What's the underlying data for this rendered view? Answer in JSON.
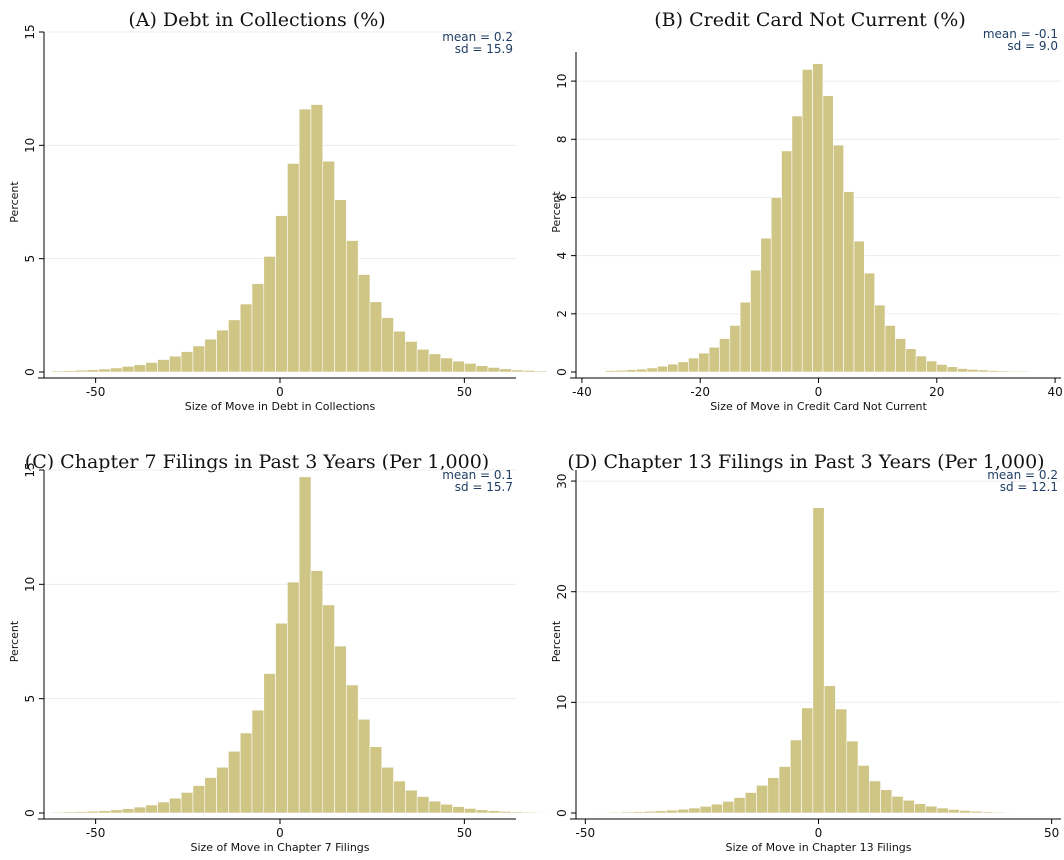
{
  "colors": {
    "bar": "#cfc585",
    "stat_text": "#1f3e63",
    "grid": "#ececec"
  },
  "chart_data": [
    {
      "type": "bar",
      "title": "(A)  Debt in Collections (%)",
      "xlabel": "Size of Move in Debt in Collections",
      "ylabel": "Percent",
      "xlim": [
        -64,
        64
      ],
      "ylim": [
        0,
        15
      ],
      "xticks": [
        -50,
        0,
        50
      ],
      "yticks": [
        0,
        5,
        10,
        15
      ],
      "grid": true,
      "stats": {
        "mean": "mean = 0.2",
        "sd": "sd = 15.9"
      },
      "bin_width": 3.2,
      "bin_start": -62,
      "values": [
        0.05,
        0.06,
        0.08,
        0.1,
        0.13,
        0.18,
        0.25,
        0.32,
        0.42,
        0.55,
        0.7,
        0.9,
        1.15,
        1.45,
        1.85,
        2.3,
        3.0,
        3.9,
        5.1,
        6.9,
        9.2,
        11.6,
        11.8,
        9.3,
        7.6,
        5.8,
        4.3,
        3.1,
        2.4,
        1.8,
        1.35,
        1.0,
        0.8,
        0.62,
        0.48,
        0.38,
        0.28,
        0.2,
        0.14,
        0.09,
        0.07,
        0.05
      ]
    },
    {
      "type": "bar",
      "title": "(B)  Credit Card Not Current (%)",
      "xlabel": "Size of Move in Credit Card Not Current",
      "ylabel": "Percent",
      "xlim": [
        -41,
        41
      ],
      "ylim": [
        0,
        11
      ],
      "xticks": [
        -40,
        -20,
        0,
        20,
        40
      ],
      "yticks": [
        0,
        2,
        4,
        6,
        8,
        10
      ],
      "grid": true,
      "stats": {
        "mean": "mean = -0.1",
        "sd": "sd = 9.0"
      },
      "bin_width": 1.75,
      "bin_start": -36,
      "values": [
        0.05,
        0.06,
        0.08,
        0.1,
        0.14,
        0.2,
        0.27,
        0.35,
        0.48,
        0.65,
        0.85,
        1.15,
        1.6,
        2.4,
        3.5,
        4.6,
        6.0,
        7.6,
        8.8,
        10.4,
        10.6,
        9.5,
        7.8,
        6.2,
        4.5,
        3.4,
        2.3,
        1.6,
        1.15,
        0.8,
        0.55,
        0.38,
        0.26,
        0.18,
        0.12,
        0.09,
        0.07,
        0.05,
        0.04,
        0.03,
        0.03
      ]
    },
    {
      "type": "bar",
      "title": "(C)  Chapter 7 Filings in Past 3 Years (Per 1,000)",
      "xlabel": "Size of Move in Chapter 7 Filings",
      "ylabel": "Percent",
      "xlim": [
        -64,
        64
      ],
      "ylim": [
        0,
        15
      ],
      "xticks": [
        -50,
        0,
        50
      ],
      "yticks": [
        0,
        5,
        10,
        15
      ],
      "grid": true,
      "stats": {
        "mean": "mean = 0.1",
        "sd": "sd = 15.7"
      },
      "bin_width": 3.2,
      "bin_start": -62,
      "values": [
        0.04,
        0.05,
        0.06,
        0.08,
        0.1,
        0.14,
        0.19,
        0.26,
        0.35,
        0.48,
        0.65,
        0.9,
        1.2,
        1.55,
        2.0,
        2.7,
        3.5,
        4.5,
        6.1,
        8.3,
        10.1,
        14.7,
        10.6,
        9.1,
        7.3,
        5.6,
        4.1,
        2.9,
        2.0,
        1.4,
        1.0,
        0.72,
        0.52,
        0.38,
        0.28,
        0.2,
        0.14,
        0.1,
        0.07,
        0.05,
        0.04,
        0.03
      ]
    },
    {
      "type": "bar",
      "title": "(D)  Chapter 13 Filings in Past 3 Years (Per 1,000)",
      "xlabel": "Size of Move in Chapter 13 Filings",
      "ylabel": "Percent",
      "xlim": [
        -52,
        52
      ],
      "ylim": [
        0,
        31
      ],
      "xticks": [
        -50,
        0,
        50
      ],
      "yticks": [
        0,
        10,
        20,
        30
      ],
      "grid": true,
      "stats": {
        "mean": "mean = 0.2",
        "sd": "sd = 12.1"
      },
      "bin_width": 2.42,
      "bin_start": -49.6,
      "values": [
        0.05,
        0.06,
        0.08,
        0.1,
        0.12,
        0.15,
        0.2,
        0.26,
        0.34,
        0.45,
        0.6,
        0.8,
        1.05,
        1.4,
        1.85,
        2.5,
        3.2,
        4.2,
        6.6,
        9.5,
        27.6,
        11.5,
        9.4,
        6.5,
        4.3,
        2.9,
        2.1,
        1.5,
        1.15,
        0.85,
        0.62,
        0.45,
        0.32,
        0.23,
        0.16,
        0.11,
        0.08,
        0.06,
        0.05,
        0.04,
        0.03
      ]
    }
  ]
}
